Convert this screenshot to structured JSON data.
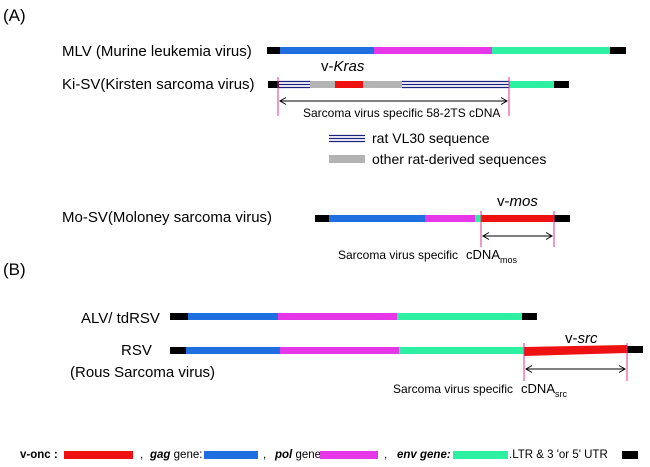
{
  "colors": {
    "onc": "#ee1111",
    "gag": "#1f6fe0",
    "pol": "#e536e8",
    "env": "#2ef0a3",
    "utr": "#000000",
    "rat_vl30": "#1a237e",
    "rat_other": "#b3b3b3",
    "marker": "#e0338e"
  },
  "section_a": {
    "label": "(A)"
  },
  "section_b": {
    "label": "(B)"
  },
  "mlv": {
    "label": "MLV (Murine leukemia virus)"
  },
  "kisv": {
    "label": "Ki-SV(Kirsten sarcoma virus)",
    "oncogene_prefix": "v-",
    "oncogene_name": "Kras",
    "cdna_label": "Sarcoma virus specific  58-2TS cDNA"
  },
  "rat_legend": {
    "vl30": "rat VL30 sequence",
    "other": "other rat-derived sequences"
  },
  "mosv": {
    "label": "Mo-SV(Moloney sarcoma virus)",
    "oncogene_prefix": "v-",
    "oncogene_name": "mos",
    "cdna_text": "Sarcoma virus specific",
    "cdna_main": "cDNA",
    "cdna_sub": "mos"
  },
  "alv": {
    "label": "ALV/ tdRSV"
  },
  "rsv": {
    "label": "RSV",
    "sublabel": "(Rous Sarcoma virus)",
    "oncogene_prefix": "v-",
    "oncogene_name": "src",
    "cdna_text": "Sarcoma virus specific",
    "cdna_main": "cDNA",
    "cdna_sub": "src"
  },
  "legend": {
    "onc": "v-onc :",
    "gag": "gag",
    "gag_suffix": " gene:",
    "pol": "pol",
    "pol_suffix": " gene:",
    "env": "env gene:",
    "utr": ".LTR & 3 'or 5' UTR",
    "sep1": ",",
    "sep2": ",",
    "sep3": ","
  }
}
